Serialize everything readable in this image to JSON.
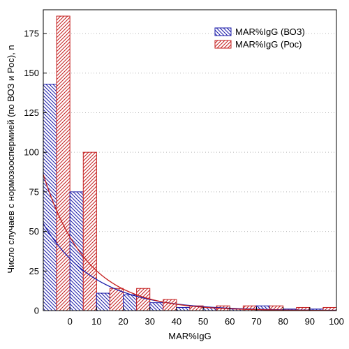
{
  "chart_data": {
    "type": "bar",
    "xlabel": "MAR%IgG",
    "ylabel": "Число случаев с нормозооспермией (по ВОЗ и Рос), n",
    "xlim": [
      -10,
      100
    ],
    "ylim": [
      0,
      190
    ],
    "x_ticks": [
      "0",
      "10",
      "20",
      "30",
      "40",
      "50",
      "60",
      "70",
      "80",
      "90",
      "100"
    ],
    "y_ticks": [
      "0",
      "25",
      "50",
      "75",
      "100",
      "125",
      "150",
      "175"
    ],
    "bin_width": 10,
    "bin_starts": [
      -10,
      0,
      10,
      20,
      30,
      40,
      50,
      60,
      70,
      80,
      90
    ],
    "grid": "horizontal-dotted",
    "legend_position": "top-right",
    "series": [
      {
        "name": "MAR%IgG (ВОЗ)",
        "color": "#1a1aa8",
        "pattern": "hatch-back",
        "values": [
          143,
          75,
          11,
          10,
          5,
          2,
          2,
          1,
          3,
          1,
          1
        ],
        "fit_curve": {
          "type": "exponential",
          "a": 55,
          "k": 0.0515
        }
      },
      {
        "name": "MAR%IgG (Рос)",
        "color": "#c41e1e",
        "pattern": "hatch-forward",
        "values": [
          186,
          100,
          14,
          14,
          7,
          3,
          3,
          3,
          3,
          2,
          2
        ],
        "fit_curve": {
          "type": "exponential",
          "a": 86,
          "k": 0.0615
        }
      }
    ]
  }
}
